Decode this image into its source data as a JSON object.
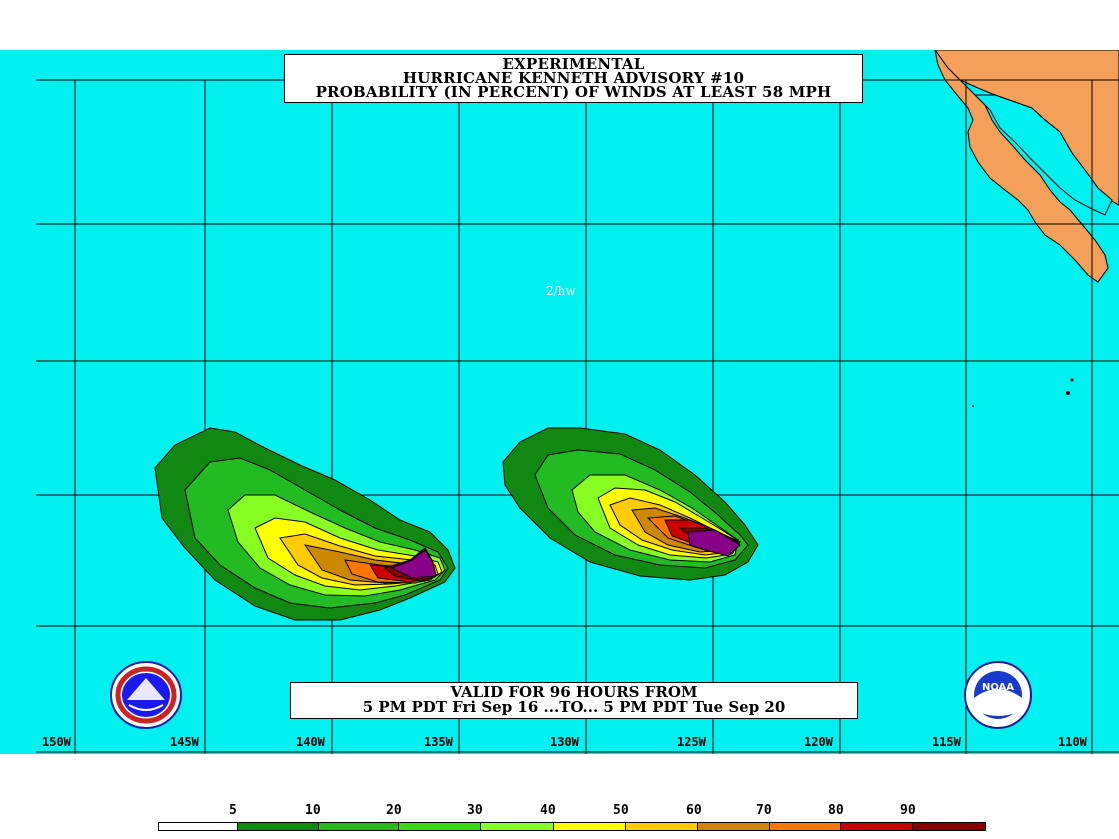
{
  "title": {
    "line1": "EXPERIMENTAL",
    "line2": "HURRICANE KENNETH ADVISORY #10",
    "line3": "PROBABILITY (IN PERCENT) OF WINDS AT LEAST 58 MPH"
  },
  "valid": {
    "line1": "VALID FOR 96 HOURS FROM",
    "line2": "5 PM PDT Fri Sep 16 ...TO... 5 PM PDT Tue Sep 20"
  },
  "forecaster_initials": "2/hw",
  "longitude_labels": [
    "150W",
    "145W",
    "140W",
    "135W",
    "130W",
    "125W",
    "120W",
    "115W",
    "110W"
  ],
  "legend": {
    "labels": [
      "5",
      "10",
      "20",
      "30",
      "40",
      "50",
      "60",
      "70",
      "80",
      "90"
    ],
    "colors": [
      "#ffffff",
      "#118811",
      "#22bb22",
      "#33dd11",
      "#88ff22",
      "#ffff00",
      "#ffcc00",
      "#cc8800",
      "#ff7700",
      "#cc0000",
      "#880000",
      "#880088"
    ]
  },
  "colors": {
    "ocean": "#00f0f0",
    "land": "#f5a05a",
    "grid": "#000000"
  },
  "logos": [
    "nws-logo-icon",
    "noaa-logo-icon"
  ],
  "noaa_logo_text": "NOAA"
}
